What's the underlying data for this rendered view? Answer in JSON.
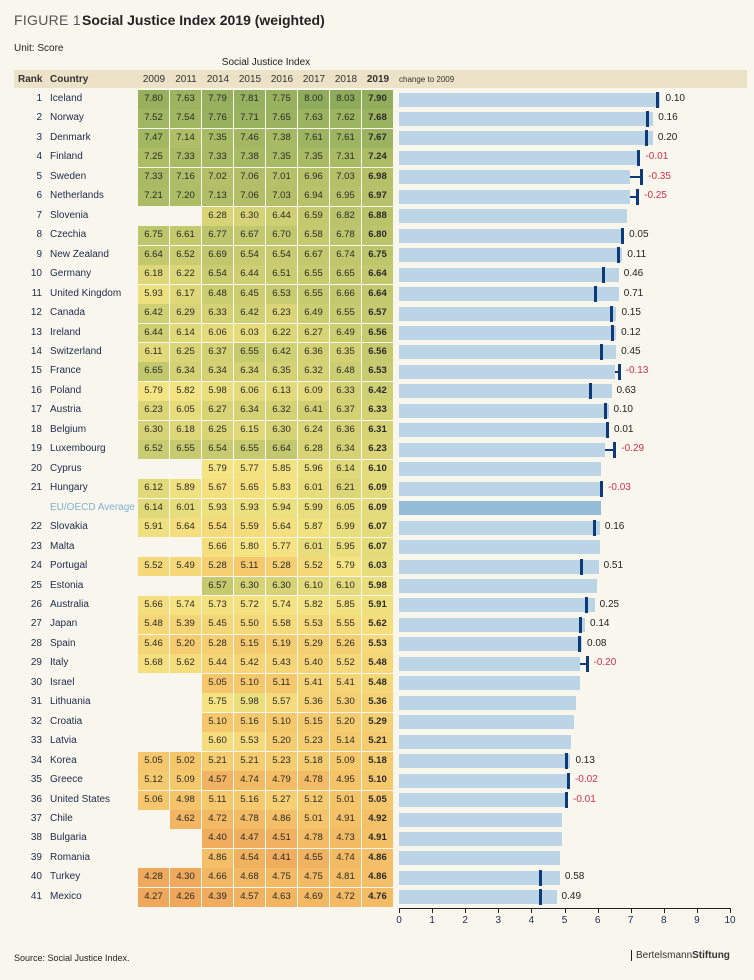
{
  "figure_label": "FIGURE 1",
  "title": "Social Justice Index 2019 (weighted)",
  "unit": "Unit: Score",
  "group_header": "Social Justice Index",
  "columns": {
    "rank": "Rank",
    "country": "Country",
    "years": [
      "2009",
      "2011",
      "2014",
      "2015",
      "2016",
      "2017",
      "2018",
      "2019"
    ],
    "change": "change to 2009"
  },
  "source": "Source: Social Justice Index.",
  "logo": "BertelsmannStiftung",
  "colors": {
    "bar": "#bcd5e6",
    "avg_bar": "#94bcd6",
    "marker": "#0e3a78",
    "negative": "#d0304c",
    "high": "#8aaa5a",
    "mid": "#f4e482",
    "low": "#eea55a"
  },
  "chart_data": {
    "type": "table",
    "bar_series": "2019",
    "marker_series": "2009",
    "xlim": [
      0,
      10
    ],
    "xticks": [
      "0",
      "1",
      "2",
      "3",
      "4",
      "5",
      "6",
      "7",
      "8",
      "9",
      "10"
    ],
    "rows": [
      {
        "rank": "1",
        "country": "Iceland",
        "values": [
          7.8,
          7.63,
          7.79,
          7.81,
          7.75,
          8.0,
          8.03,
          7.9
        ],
        "change": "0.10"
      },
      {
        "rank": "2",
        "country": "Norway",
        "values": [
          7.52,
          7.54,
          7.76,
          7.71,
          7.65,
          7.63,
          7.62,
          7.68
        ],
        "change": "0.16"
      },
      {
        "rank": "3",
        "country": "Denmark",
        "values": [
          7.47,
          7.14,
          7.35,
          7.46,
          7.38,
          7.61,
          7.61,
          7.67
        ],
        "change": "0.20"
      },
      {
        "rank": "4",
        "country": "Finland",
        "values": [
          7.25,
          7.33,
          7.33,
          7.38,
          7.35,
          7.35,
          7.31,
          7.24
        ],
        "change": "-0.01"
      },
      {
        "rank": "5",
        "country": "Sweden",
        "values": [
          7.33,
          7.16,
          7.02,
          7.06,
          7.01,
          6.96,
          7.03,
          6.98
        ],
        "change": "-0.35"
      },
      {
        "rank": "6",
        "country": "Netherlands",
        "values": [
          7.21,
          7.2,
          7.13,
          7.06,
          7.03,
          6.94,
          6.95,
          6.97
        ],
        "change": "-0.25"
      },
      {
        "rank": "7",
        "country": "Slovenia",
        "values": [
          null,
          null,
          6.28,
          6.3,
          6.44,
          6.59,
          6.82,
          6.88
        ],
        "change": null
      },
      {
        "rank": "8",
        "country": "Czechia",
        "values": [
          6.75,
          6.61,
          6.77,
          6.67,
          6.7,
          6.58,
          6.78,
          6.8
        ],
        "change": "0.05"
      },
      {
        "rank": "9",
        "country": "New Zealand",
        "values": [
          6.64,
          6.52,
          6.69,
          6.54,
          6.54,
          6.67,
          6.74,
          6.75
        ],
        "change": "0.11"
      },
      {
        "rank": "10",
        "country": "Germany",
        "values": [
          6.18,
          6.22,
          6.54,
          6.44,
          6.51,
          6.55,
          6.65,
          6.64
        ],
        "change": "0.46"
      },
      {
        "rank": "11",
        "country": "United Kingdom",
        "values": [
          5.93,
          6.17,
          6.48,
          6.45,
          6.53,
          6.55,
          6.66,
          6.64
        ],
        "change": "0.71"
      },
      {
        "rank": "12",
        "country": "Canada",
        "values": [
          6.42,
          6.29,
          6.33,
          6.42,
          6.23,
          6.49,
          6.55,
          6.57
        ],
        "change": "0.15"
      },
      {
        "rank": "13",
        "country": "Ireland",
        "values": [
          6.44,
          6.14,
          6.06,
          6.03,
          6.22,
          6.27,
          6.49,
          6.56
        ],
        "change": "0.12"
      },
      {
        "rank": "14",
        "country": "Switzerland",
        "values": [
          6.11,
          6.25,
          6.37,
          6.55,
          6.42,
          6.36,
          6.35,
          6.56
        ],
        "change": "0.45"
      },
      {
        "rank": "15",
        "country": "France",
        "values": [
          6.65,
          6.34,
          6.34,
          6.34,
          6.35,
          6.32,
          6.48,
          6.53
        ],
        "change": "-0.13"
      },
      {
        "rank": "16",
        "country": "Poland",
        "values": [
          5.79,
          5.82,
          5.98,
          6.06,
          6.13,
          6.09,
          6.33,
          6.42
        ],
        "change": "0.63"
      },
      {
        "rank": "17",
        "country": "Austria",
        "values": [
          6.23,
          6.05,
          6.27,
          6.34,
          6.32,
          6.41,
          6.37,
          6.33
        ],
        "change": "0.10"
      },
      {
        "rank": "18",
        "country": "Belgium",
        "values": [
          6.3,
          6.18,
          6.25,
          6.15,
          6.3,
          6.24,
          6.36,
          6.31
        ],
        "change": "0.01"
      },
      {
        "rank": "19",
        "country": "Luxembourg",
        "values": [
          6.52,
          6.55,
          6.54,
          6.55,
          6.64,
          6.28,
          6.34,
          6.23
        ],
        "change": "-0.29"
      },
      {
        "rank": "20",
        "country": "Cyprus",
        "values": [
          null,
          null,
          5.79,
          5.77,
          5.85,
          5.96,
          6.14,
          6.1
        ],
        "change": null
      },
      {
        "rank": "21",
        "country": "Hungary",
        "values": [
          6.12,
          5.89,
          5.67,
          5.65,
          5.83,
          6.01,
          6.21,
          6.09
        ],
        "change": "-0.03"
      },
      {
        "rank": "",
        "country": "EU/OECD Average",
        "average": true,
        "values": [
          6.14,
          6.01,
          5.93,
          5.93,
          5.94,
          5.99,
          6.05,
          6.09
        ],
        "change": null
      },
      {
        "rank": "22",
        "country": "Slovakia",
        "values": [
          5.91,
          5.64,
          5.54,
          5.59,
          5.64,
          5.87,
          5.99,
          6.07
        ],
        "change": "0.16"
      },
      {
        "rank": "23",
        "country": "Malta",
        "values": [
          null,
          null,
          5.66,
          5.8,
          5.77,
          6.01,
          5.95,
          6.07
        ],
        "change": null
      },
      {
        "rank": "24",
        "country": "Portugal",
        "values": [
          5.52,
          5.49,
          5.28,
          5.11,
          5.28,
          5.52,
          5.79,
          6.03
        ],
        "change": "0.51"
      },
      {
        "rank": "25",
        "country": "Estonia",
        "values": [
          null,
          null,
          6.57,
          6.3,
          6.3,
          6.1,
          6.1,
          5.98
        ],
        "change": null
      },
      {
        "rank": "26",
        "country": "Australia",
        "values": [
          5.66,
          5.74,
          5.73,
          5.72,
          5.74,
          5.82,
          5.85,
          5.91
        ],
        "change": "0.25"
      },
      {
        "rank": "27",
        "country": "Japan",
        "values": [
          5.48,
          5.39,
          5.45,
          5.5,
          5.58,
          5.53,
          5.55,
          5.62
        ],
        "change": "0.14"
      },
      {
        "rank": "28",
        "country": "Spain",
        "values": [
          5.46,
          5.2,
          5.28,
          5.15,
          5.19,
          5.29,
          5.26,
          5.53
        ],
        "change": "0.08"
      },
      {
        "rank": "29",
        "country": "Italy",
        "values": [
          5.68,
          5.62,
          5.44,
          5.42,
          5.43,
          5.4,
          5.52,
          5.48
        ],
        "change": "-0.20"
      },
      {
        "rank": "30",
        "country": "Israel",
        "values": [
          null,
          null,
          5.05,
          5.1,
          5.11,
          5.41,
          5.41,
          5.48
        ],
        "change": null
      },
      {
        "rank": "31",
        "country": "Lithuania",
        "values": [
          null,
          null,
          5.75,
          5.98,
          5.57,
          5.36,
          5.3,
          5.36
        ],
        "change": null
      },
      {
        "rank": "32",
        "country": "Croatia",
        "values": [
          null,
          null,
          5.1,
          5.16,
          5.1,
          5.15,
          5.2,
          5.29
        ],
        "change": null
      },
      {
        "rank": "33",
        "country": "Latvia",
        "values": [
          null,
          null,
          5.6,
          5.53,
          5.2,
          5.23,
          5.14,
          5.21
        ],
        "change": null
      },
      {
        "rank": "34",
        "country": "Korea",
        "values": [
          5.05,
          5.02,
          5.21,
          5.21,
          5.23,
          5.18,
          5.09,
          5.18
        ],
        "change": "0.13"
      },
      {
        "rank": "35",
        "country": "Greece",
        "values": [
          5.12,
          5.09,
          4.57,
          4.74,
          4.79,
          4.78,
          4.95,
          5.1
        ],
        "change": "-0.02"
      },
      {
        "rank": "36",
        "country": "United States",
        "values": [
          5.06,
          4.98,
          5.11,
          5.16,
          5.27,
          5.12,
          5.01,
          5.05
        ],
        "change": "-0.01"
      },
      {
        "rank": "37",
        "country": "Chile",
        "values": [
          null,
          4.62,
          4.72,
          4.78,
          4.86,
          5.01,
          4.91,
          4.92
        ],
        "change": null
      },
      {
        "rank": "38",
        "country": "Bulgaria",
        "values": [
          null,
          null,
          4.4,
          4.47,
          4.51,
          4.78,
          4.73,
          4.91
        ],
        "change": null
      },
      {
        "rank": "39",
        "country": "Romania",
        "values": [
          null,
          null,
          4.86,
          4.54,
          4.41,
          4.55,
          4.74,
          4.86
        ],
        "change": null
      },
      {
        "rank": "40",
        "country": "Turkey",
        "values": [
          4.28,
          4.3,
          4.66,
          4.68,
          4.75,
          4.75,
          4.81,
          4.86
        ],
        "change": "0.58"
      },
      {
        "rank": "41",
        "country": "Mexico",
        "values": [
          4.27,
          4.26,
          4.39,
          4.57,
          4.63,
          4.69,
          4.72,
          4.76
        ],
        "change": "0.49"
      }
    ]
  }
}
